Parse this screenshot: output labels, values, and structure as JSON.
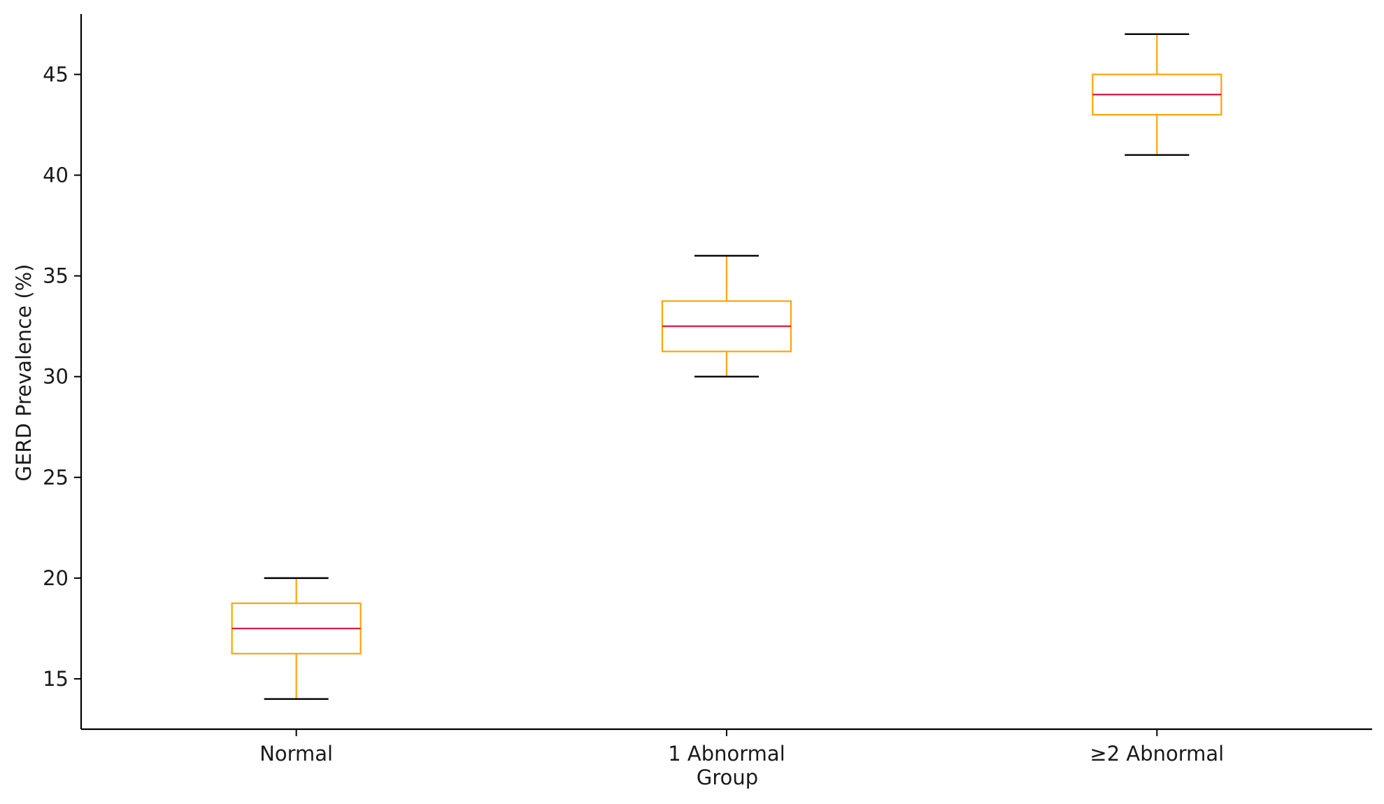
{
  "chart_data": {
    "type": "box",
    "title": "",
    "xlabel": "Group",
    "ylabel": "GERD Prevalence (%)",
    "ylim": [
      12.5,
      48.0
    ],
    "yticks": [
      15,
      20,
      25,
      30,
      35,
      40,
      45
    ],
    "grid": false,
    "categories": [
      "Normal",
      "1 Abnormal",
      "≥2 Abnormal"
    ],
    "boxes": [
      {
        "category": "Normal",
        "whisker_low": 14.0,
        "q1": 16.25,
        "median": 17.5,
        "q3": 18.75,
        "whisker_high": 20.0
      },
      {
        "category": "1 Abnormal",
        "whisker_low": 30.0,
        "q1": 31.25,
        "median": 32.5,
        "q3": 33.75,
        "whisker_high": 36.0
      },
      {
        "category": "≥2 Abnormal",
        "whisker_low": 41.0,
        "q1": 43.0,
        "median": 44.0,
        "q3": 45.0,
        "whisker_high": 47.0
      }
    ],
    "colors": {
      "box": "#FFA500",
      "median": "#DC143C",
      "cap": "#000000",
      "axis": "#000000"
    }
  }
}
